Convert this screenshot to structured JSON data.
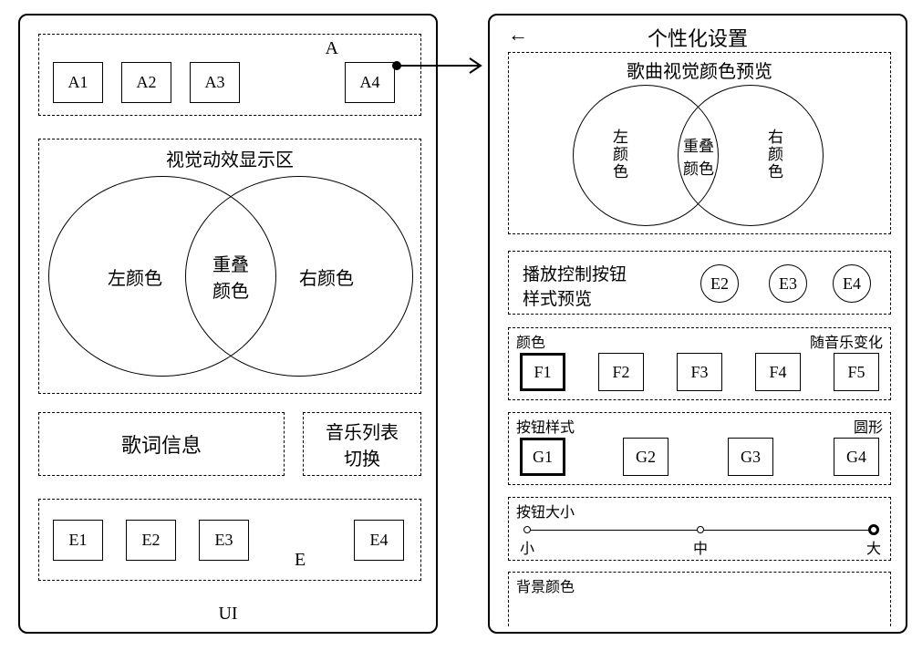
{
  "colors": {
    "stroke": "#000000",
    "bg": "#ffffff"
  },
  "left": {
    "section_a_label": "A",
    "a_buttons": [
      "A1",
      "A2",
      "A3",
      "A4"
    ],
    "visual_title": "视觉动效显示区",
    "venn": {
      "left": "左颜色",
      "overlap": "重叠\n颜色",
      "right": "右颜色"
    },
    "lyrics": "歌词信息",
    "musiclist": "音乐列表\n切换",
    "section_e_label": "E",
    "e_buttons": [
      "E1",
      "E2",
      "E3",
      "E4"
    ],
    "ui_label": "UI"
  },
  "right": {
    "back_arrow": "←",
    "title": "个性化设置",
    "preview_title": "歌曲视觉颜色预览",
    "venn": {
      "left": "左\n颜\n色",
      "overlap": "重叠\n颜色",
      "right": "右\n颜\n色"
    },
    "play_ctrl_label": "播放控制按钮\n样式预览",
    "play_ctrl_buttons": [
      "E2",
      "E3",
      "E4"
    ],
    "color_section": {
      "label_left": "颜色",
      "label_right": "随音乐变化",
      "items": [
        "F1",
        "F2",
        "F3",
        "F4",
        "F5"
      ],
      "selected_index": 0
    },
    "style_section": {
      "label_left": "按钮样式",
      "label_right": "圆形",
      "items": [
        "G1",
        "G2",
        "G3",
        "G4"
      ],
      "selected_index": 0
    },
    "size_section": {
      "label": "按钮大小",
      "ticks": [
        "小",
        "中",
        "大"
      ],
      "selected_index": 2
    },
    "bg_color_label": "背景颜色"
  }
}
